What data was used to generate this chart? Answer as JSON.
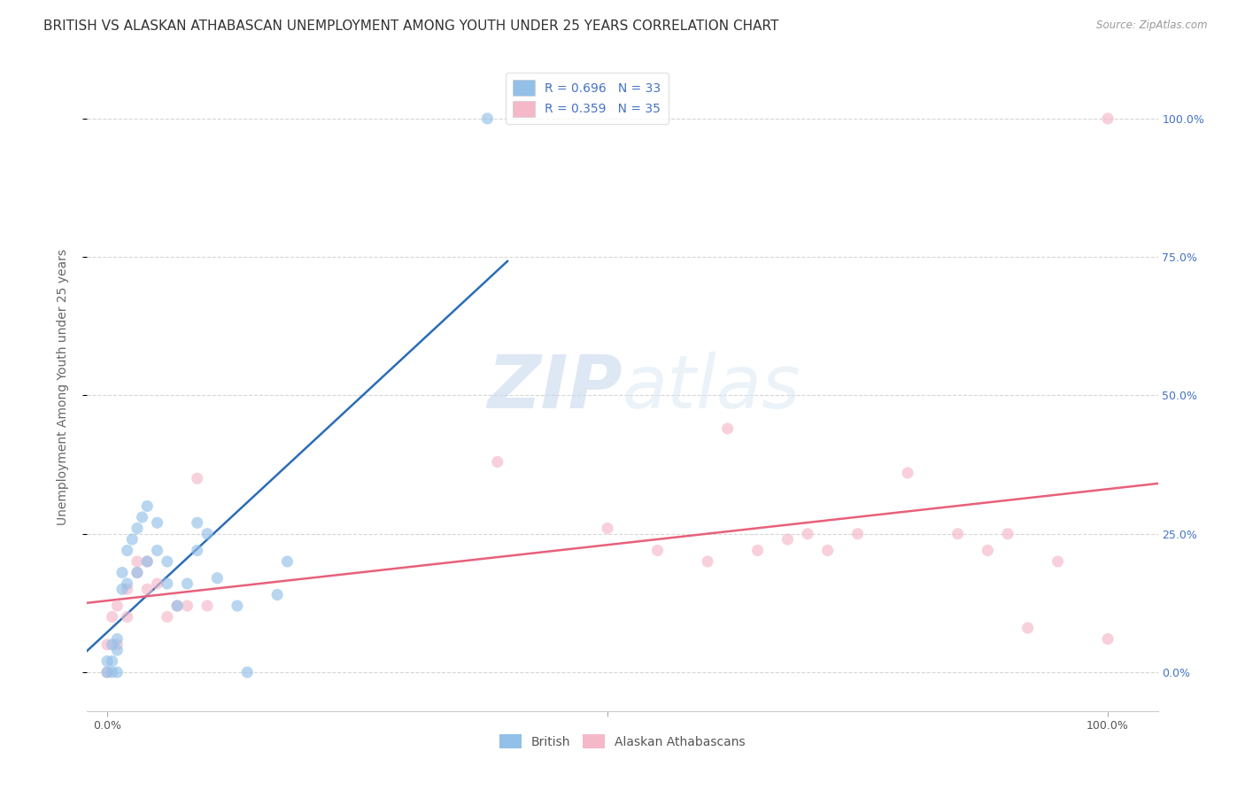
{
  "title": "BRITISH VS ALASKAN ATHABASCAN UNEMPLOYMENT AMONG YOUTH UNDER 25 YEARS CORRELATION CHART",
  "source": "Source: ZipAtlas.com",
  "ylabel": "Unemployment Among Youth under 25 years",
  "xlim": [
    -0.02,
    1.05
  ],
  "ylim": [
    -0.07,
    1.1
  ],
  "british_color": "#92c0e8",
  "alaskan_color": "#f5b8c8",
  "british_line_color": "#2a6db5",
  "alaskan_line_color": "#e8607a",
  "r_british": 0.696,
  "n_british": 33,
  "r_alaskan": 0.359,
  "n_alaskan": 35,
  "legend_label_british": "British",
  "legend_label_alaskan": "Alaskan Athabascans",
  "watermark_zip": "ZIP",
  "watermark_atlas": "atlas",
  "background_color": "#ffffff",
  "grid_color": "#cccccc",
  "marker_size": 90,
  "marker_alpha": 0.65,
  "title_fontsize": 11,
  "axis_label_fontsize": 10,
  "tick_fontsize": 9,
  "legend_fontsize": 10,
  "right_axis_color": "#4472c4",
  "british_x": [
    0.0,
    0.0,
    0.005,
    0.005,
    0.005,
    0.01,
    0.01,
    0.01,
    0.015,
    0.015,
    0.02,
    0.02,
    0.025,
    0.03,
    0.03,
    0.035,
    0.04,
    0.04,
    0.05,
    0.05,
    0.06,
    0.06,
    0.07,
    0.08,
    0.09,
    0.09,
    0.1,
    0.11,
    0.13,
    0.14,
    0.17,
    0.18,
    0.38
  ],
  "british_y": [
    0.0,
    0.02,
    0.0,
    0.02,
    0.05,
    0.0,
    0.04,
    0.06,
    0.15,
    0.18,
    0.16,
    0.22,
    0.24,
    0.18,
    0.26,
    0.28,
    0.2,
    0.3,
    0.22,
    0.27,
    0.16,
    0.2,
    0.12,
    0.16,
    0.27,
    0.22,
    0.25,
    0.17,
    0.12,
    0.0,
    0.14,
    0.2,
    1.0
  ],
  "alaskan_x": [
    0.0,
    0.0,
    0.005,
    0.01,
    0.01,
    0.02,
    0.02,
    0.03,
    0.03,
    0.04,
    0.04,
    0.05,
    0.06,
    0.07,
    0.08,
    0.09,
    0.1,
    0.39,
    0.5,
    0.55,
    0.6,
    0.62,
    0.65,
    0.68,
    0.7,
    0.72,
    0.75,
    0.8,
    0.85,
    0.88,
    0.9,
    0.92,
    0.95,
    1.0,
    1.0
  ],
  "alaskan_y": [
    0.0,
    0.05,
    0.1,
    0.05,
    0.12,
    0.1,
    0.15,
    0.18,
    0.2,
    0.15,
    0.2,
    0.16,
    0.1,
    0.12,
    0.12,
    0.35,
    0.12,
    0.38,
    0.26,
    0.22,
    0.2,
    0.44,
    0.22,
    0.24,
    0.25,
    0.22,
    0.25,
    0.36,
    0.25,
    0.22,
    0.25,
    0.08,
    0.2,
    1.0,
    0.06
  ]
}
